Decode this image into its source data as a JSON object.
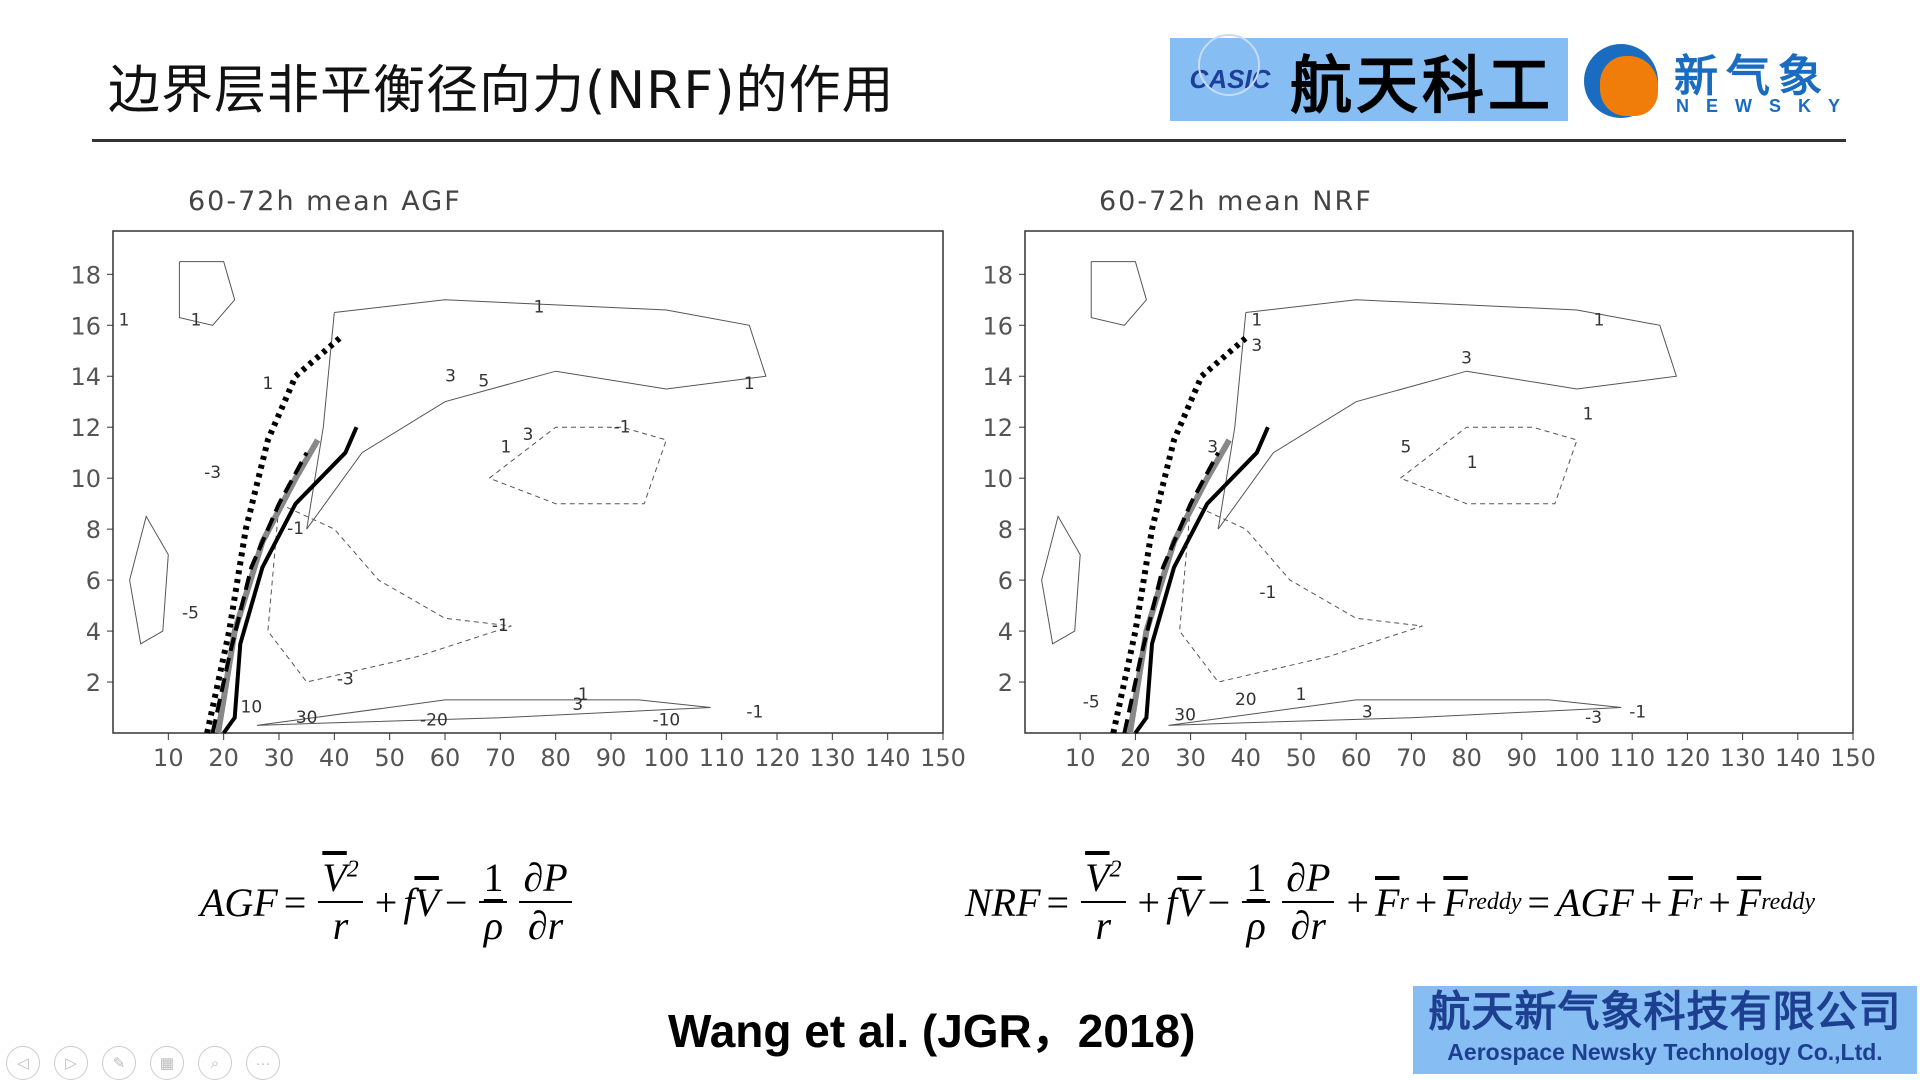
{
  "header": {
    "title": "边界层非平衡径向力(NRF)的作用",
    "logo_casic": {
      "mark": "CASIC",
      "text": "航天科工"
    },
    "logo_newsky": {
      "cn": "新气象",
      "en": "NEWSKY"
    }
  },
  "chart_data": [
    {
      "type": "contour",
      "title": "60-72h mean AGF",
      "xlim": [
        0,
        150
      ],
      "ylim": [
        0,
        19.7
      ],
      "xticks": [
        10,
        20,
        30,
        40,
        50,
        60,
        70,
        80,
        90,
        100,
        110,
        120,
        130,
        140,
        150
      ],
      "yticks": [
        2,
        4,
        6,
        8,
        10,
        12,
        14,
        16,
        18
      ],
      "contour_labels": [
        {
          "x": 2,
          "y": 16,
          "t": "1"
        },
        {
          "x": 15,
          "y": 16,
          "t": "1"
        },
        {
          "x": 77,
          "y": 16.5,
          "t": "1"
        },
        {
          "x": 28,
          "y": 13.5,
          "t": "1"
        },
        {
          "x": 61,
          "y": 13.8,
          "t": "3"
        },
        {
          "x": 67,
          "y": 13.6,
          "t": "5"
        },
        {
          "x": 115,
          "y": 13.5,
          "t": "1"
        },
        {
          "x": 75,
          "y": 11.5,
          "t": "3"
        },
        {
          "x": 71,
          "y": 11,
          "t": "1"
        },
        {
          "x": 92,
          "y": 11.8,
          "t": "-1"
        },
        {
          "x": 18,
          "y": 10,
          "t": "-3"
        },
        {
          "x": 33,
          "y": 7.8,
          "t": "-1"
        },
        {
          "x": 14,
          "y": 4.5,
          "t": "-5"
        },
        {
          "x": 70,
          "y": 4,
          "t": "-1"
        },
        {
          "x": 42,
          "y": 1.9,
          "t": "-3"
        },
        {
          "x": 85,
          "y": 1.3,
          "t": "1"
        },
        {
          "x": 84,
          "y": 0.9,
          "t": "3"
        },
        {
          "x": 25,
          "y": 0.8,
          "t": "10"
        },
        {
          "x": 35,
          "y": 0.4,
          "t": "30"
        },
        {
          "x": 58,
          "y": 0.3,
          "t": "-20"
        },
        {
          "x": 100,
          "y": 0.3,
          "t": "-10"
        },
        {
          "x": 116,
          "y": 0.6,
          "t": "-1"
        }
      ],
      "series": [
        {
          "name": "dotted",
          "values": [
            [
              17,
              0
            ],
            [
              21,
              4
            ],
            [
              24,
              8
            ],
            [
              28,
              11.5
            ],
            [
              33,
              14
            ],
            [
              41,
              15.5
            ]
          ]
        },
        {
          "name": "gray",
          "values": [
            [
              19,
              0
            ],
            [
              22,
              4
            ],
            [
              27,
              7.5
            ],
            [
              33,
              10
            ],
            [
              37,
              11.5
            ]
          ]
        },
        {
          "name": "dashed",
          "values": [
            [
              18,
              0
            ],
            [
              21,
              3
            ],
            [
              25,
              6.5
            ],
            [
              30,
              9
            ],
            [
              35,
              11
            ]
          ]
        },
        {
          "name": "solid",
          "values": [
            [
              20,
              0
            ],
            [
              22,
              0.6
            ],
            [
              23,
              3.5
            ],
            [
              27,
              6.5
            ],
            [
              33,
              9
            ],
            [
              42,
              11
            ],
            [
              44,
              12
            ]
          ]
        }
      ]
    },
    {
      "type": "contour",
      "title": "60-72h mean NRF",
      "xlim": [
        0,
        150
      ],
      "ylim": [
        0,
        19.7
      ],
      "xticks": [
        10,
        20,
        30,
        40,
        50,
        60,
        70,
        80,
        90,
        100,
        110,
        120,
        130,
        140,
        150
      ],
      "yticks": [
        2,
        4,
        6,
        8,
        10,
        12,
        14,
        16,
        18
      ],
      "contour_labels": [
        {
          "x": 42,
          "y": 16,
          "t": "1"
        },
        {
          "x": 104,
          "y": 16,
          "t": "1"
        },
        {
          "x": 42,
          "y": 15,
          "t": "3"
        },
        {
          "x": 80,
          "y": 14.5,
          "t": "3"
        },
        {
          "x": 102,
          "y": 12.3,
          "t": "1"
        },
        {
          "x": 34,
          "y": 11,
          "t": "3"
        },
        {
          "x": 69,
          "y": 11,
          "t": "5"
        },
        {
          "x": 81,
          "y": 10.4,
          "t": "1"
        },
        {
          "x": 44,
          "y": 5.3,
          "t": "-1"
        },
        {
          "x": 40,
          "y": 1.1,
          "t": "20"
        },
        {
          "x": 29,
          "y": 0.5,
          "t": "30"
        },
        {
          "x": 50,
          "y": 1.3,
          "t": "1"
        },
        {
          "x": 62,
          "y": 0.6,
          "t": "3"
        },
        {
          "x": 103,
          "y": 0.4,
          "t": "-3"
        },
        {
          "x": 111,
          "y": 0.6,
          "t": "-1"
        },
        {
          "x": 12,
          "y": 1.0,
          "t": "-5"
        }
      ],
      "series": [
        {
          "name": "dotted",
          "values": [
            [
              16,
              0
            ],
            [
              20,
              4
            ],
            [
              23,
              8
            ],
            [
              27,
              11.5
            ],
            [
              32,
              14
            ],
            [
              40,
              15.5
            ]
          ]
        },
        {
          "name": "gray",
          "values": [
            [
              19,
              0
            ],
            [
              22,
              4
            ],
            [
              27,
              7.5
            ],
            [
              33,
              10
            ],
            [
              37,
              11.5
            ]
          ]
        },
        {
          "name": "dashed",
          "values": [
            [
              18,
              0
            ],
            [
              21,
              3
            ],
            [
              25,
              6.5
            ],
            [
              30,
              9
            ],
            [
              35,
              11
            ]
          ]
        },
        {
          "name": "solid",
          "values": [
            [
              20,
              0
            ],
            [
              22,
              0.6
            ],
            [
              23,
              3.5
            ],
            [
              27,
              6.5
            ],
            [
              33,
              9
            ],
            [
              42,
              11
            ],
            [
              44,
              12
            ]
          ]
        }
      ]
    }
  ],
  "formulas": {
    "agf_lhs": "AGF",
    "nrf_lhs": "NRF",
    "eq": "=",
    "plus": "+",
    "minus": "−",
    "one": "1",
    "V": "V",
    "sq": "2",
    "r": "r",
    "f": "f",
    "rho": "ρ",
    "dP": "∂P",
    "dr": "∂r",
    "F": "F",
    "sub_r": "r",
    "sub_reddy": "reddy",
    "agf": "AGF"
  },
  "citation": "Wang et al. (JGR，2018)",
  "company": {
    "cn": "航天新气象科技有限公司",
    "en": "Aerospace Newsky Technology Co.,Ltd."
  },
  "nav": [
    "◁",
    "▷",
    "✎",
    "▦",
    "⌕",
    "···"
  ]
}
